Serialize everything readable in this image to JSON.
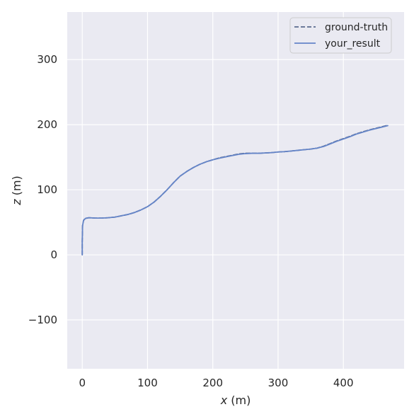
{
  "chart_data": {
    "type": "line",
    "title": "",
    "xlabel_var": "x",
    "xlabel_unit": " (m)",
    "ylabel_var": "z",
    "ylabel_unit": " (m)",
    "xlim": [
      -23,
      493
    ],
    "ylim": [
      -175,
      373
    ],
    "xticks": [
      0,
      100,
      200,
      300,
      400
    ],
    "yticks": [
      -100,
      0,
      100,
      200,
      300
    ],
    "xtick_labels": [
      "0",
      "100",
      "200",
      "300",
      "400"
    ],
    "ytick_labels": [
      "−100",
      "0",
      "100",
      "200",
      "300"
    ],
    "grid": true,
    "legend_position": "top-right",
    "series": [
      {
        "name": "ground-truth",
        "style": "dashed",
        "color": "#5a6a8e",
        "x": [
          0,
          0,
          0.5,
          2,
          5,
          10,
          20,
          30,
          40,
          50,
          60,
          70,
          80,
          90,
          100,
          110,
          120,
          130,
          140,
          150,
          160,
          170,
          180,
          190,
          200,
          210,
          220,
          230,
          240,
          250,
          260,
          270,
          280,
          290,
          300,
          310,
          320,
          330,
          340,
          350,
          360,
          370,
          380,
          390,
          400,
          410,
          420,
          430,
          440,
          450,
          460,
          468
        ],
        "y": [
          0,
          20,
          45,
          53,
          56,
          57,
          56.5,
          56.5,
          57,
          58,
          60,
          62,
          65,
          69,
          74,
          81,
          90,
          100,
          111,
          121,
          128,
          134,
          139,
          143,
          146,
          149,
          151,
          153,
          155,
          156,
          156,
          156,
          156.5,
          157,
          158,
          158.5,
          159.5,
          160.5,
          161.5,
          162.5,
          164,
          167,
          171,
          175,
          178.5,
          182,
          186,
          189,
          192,
          194.5,
          197,
          199
        ]
      },
      {
        "name": "your_result",
        "style": "solid",
        "color": "#6585c8",
        "x": [
          0,
          0,
          0.5,
          2,
          5,
          10,
          20,
          30,
          40,
          50,
          60,
          70,
          80,
          90,
          100,
          110,
          120,
          130,
          140,
          150,
          160,
          170,
          180,
          190,
          200,
          210,
          220,
          230,
          240,
          250,
          260,
          270,
          280,
          290,
          300,
          310,
          320,
          330,
          340,
          350,
          360,
          370,
          380,
          390,
          400,
          410,
          420,
          430,
          440,
          450,
          460,
          468
        ],
        "y": [
          0,
          20,
          45,
          53,
          56,
          57,
          56.5,
          56.5,
          57,
          58,
          60,
          62,
          65,
          69,
          74,
          81,
          90,
          100,
          111,
          121,
          128,
          134,
          139,
          143,
          146,
          148.5,
          150.5,
          152.5,
          154.5,
          155.5,
          156,
          156,
          156.5,
          157,
          158,
          158.5,
          159.5,
          160.5,
          161.5,
          162.5,
          164,
          166.5,
          170.5,
          174.5,
          178,
          181.5,
          185.5,
          188.5,
          191.5,
          194,
          196.5,
          198.5
        ]
      }
    ]
  },
  "colors": {
    "plot_background": "#eaeaf2",
    "grid": "#ffffff",
    "text": "#262626"
  }
}
